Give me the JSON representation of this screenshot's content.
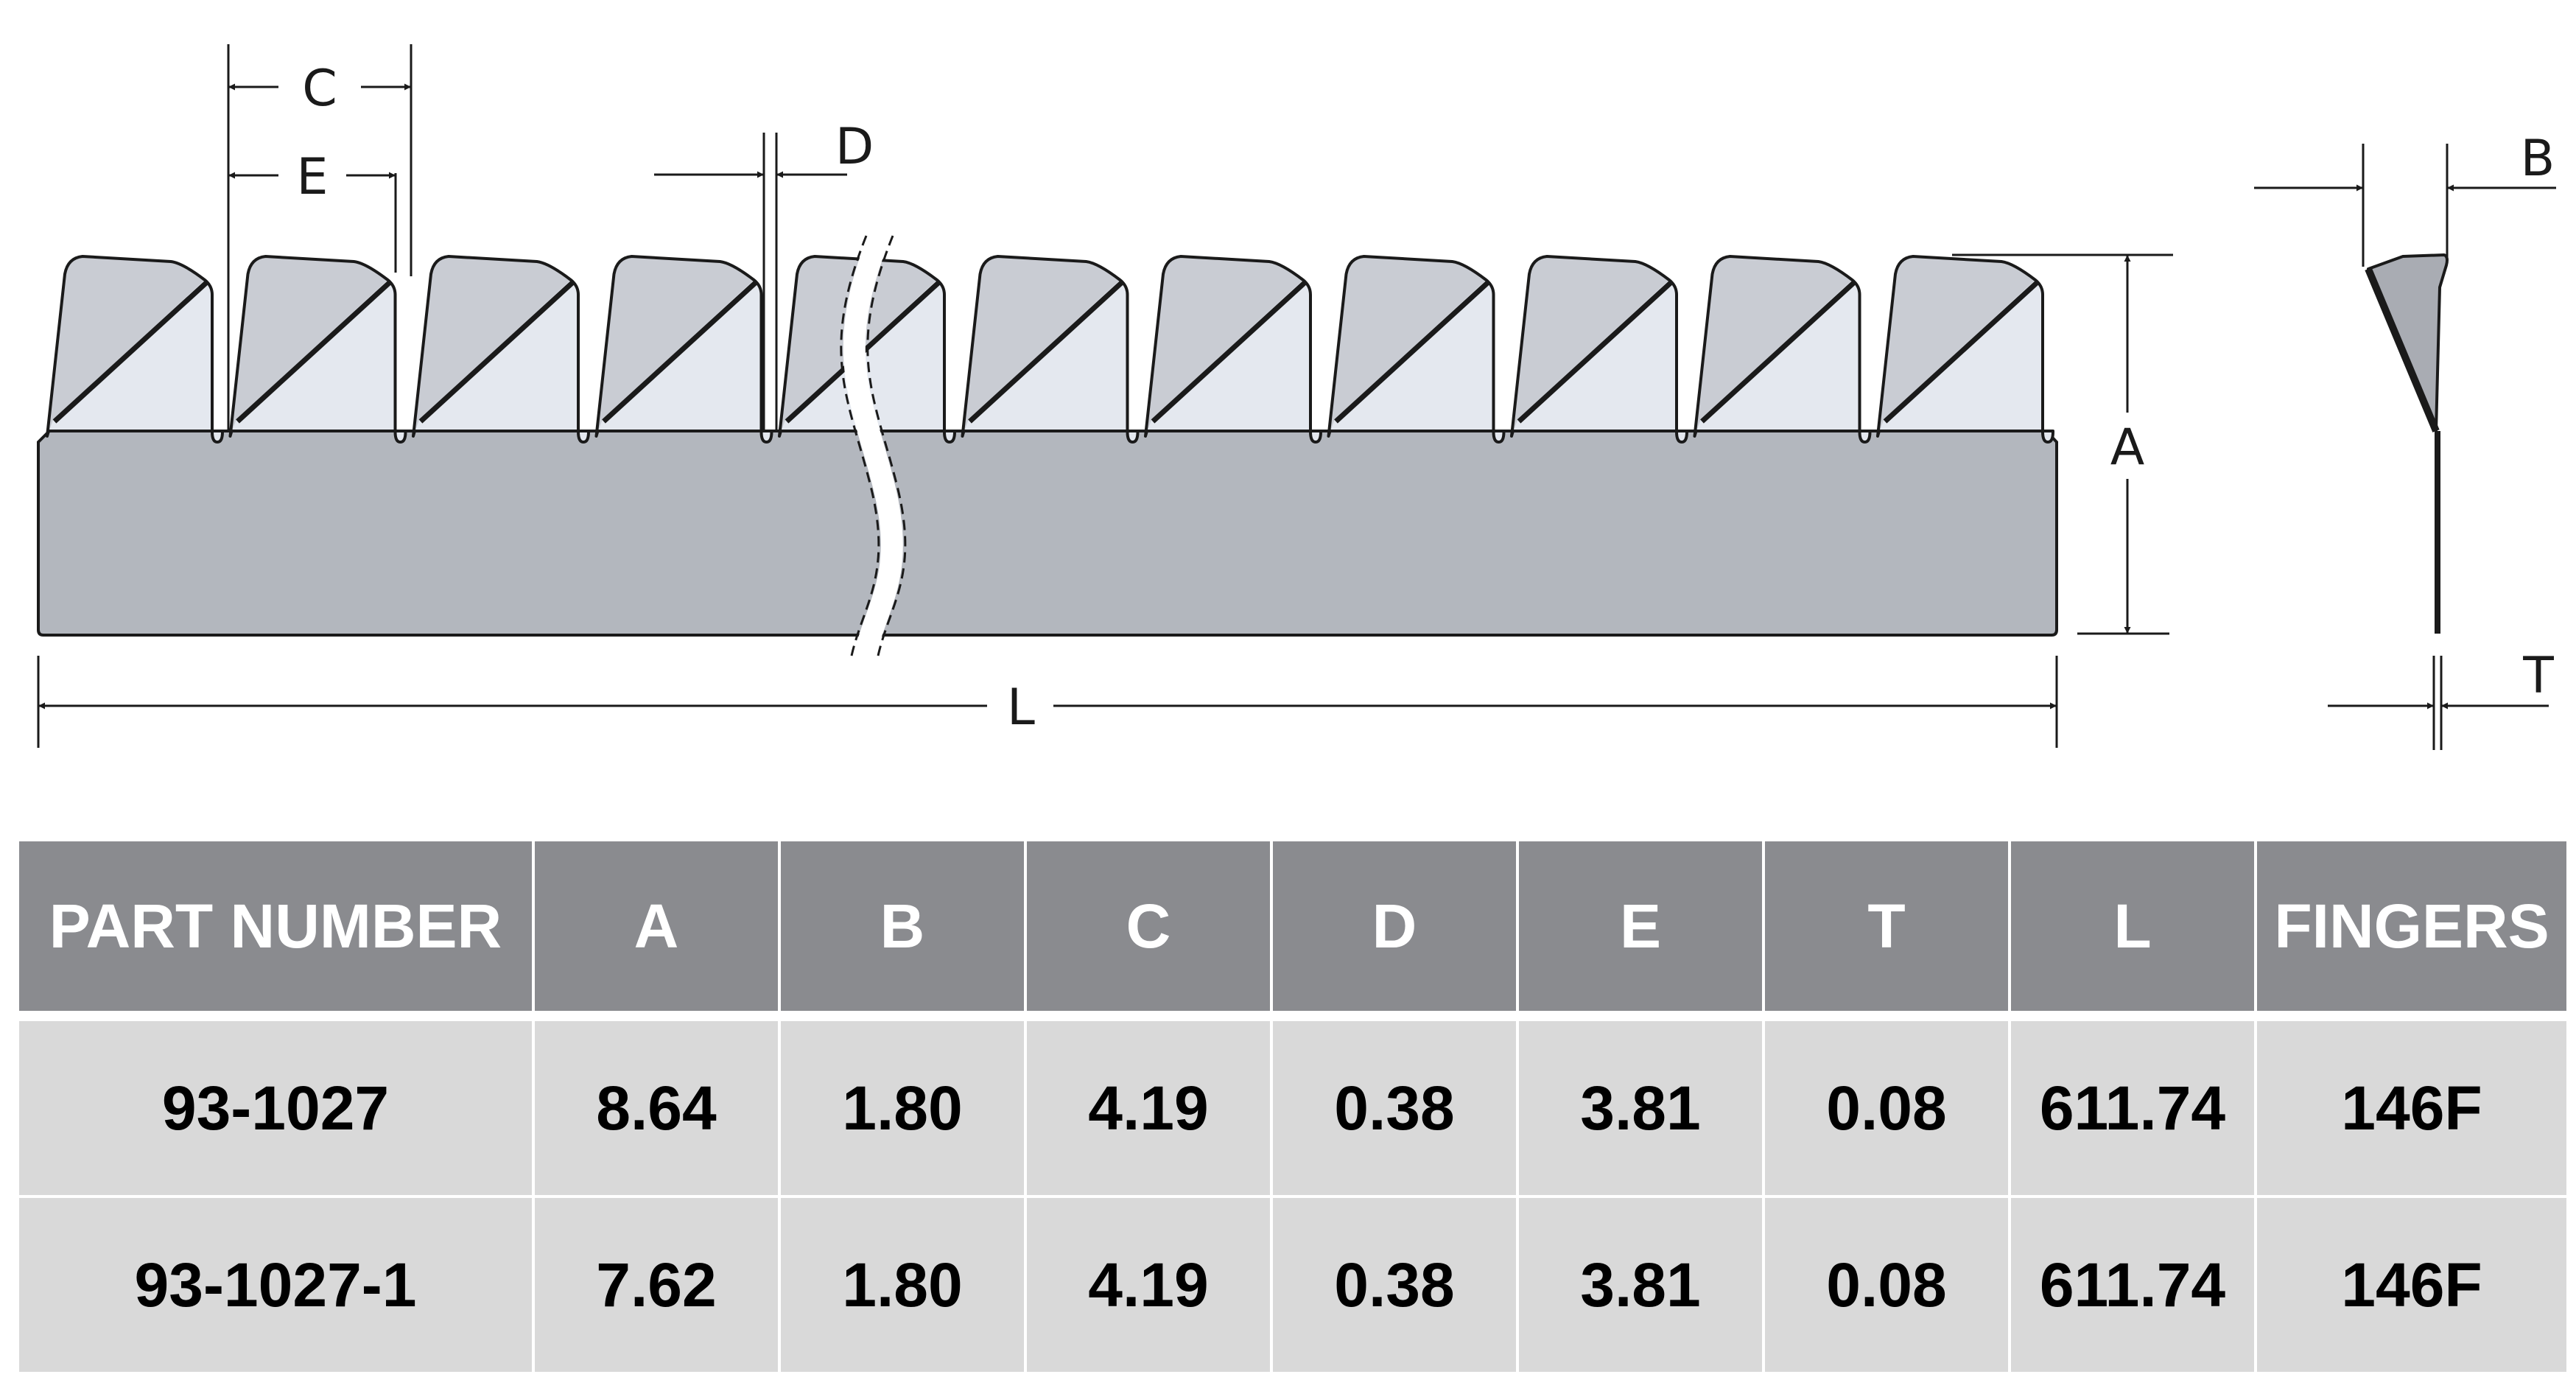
{
  "diagram": {
    "labels": {
      "c": "C",
      "e": "E",
      "d": "D",
      "a": "A",
      "l": "L",
      "b": "B",
      "t": "T"
    },
    "colors": {
      "fingers_light": "#e4e8ef",
      "fingers_dark": "#c9ccd3",
      "base": "#b3b7be",
      "profile_fill": "#a9acb3",
      "outline": "#1a1a1a"
    }
  },
  "table": {
    "headers": [
      "PART NUMBER",
      "A",
      "B",
      "C",
      "D",
      "E",
      "T",
      "L",
      "FINGERS"
    ],
    "rows": [
      [
        "93-1027",
        "8.64",
        "1.80",
        "4.19",
        "0.38",
        "3.81",
        "0.08",
        "611.74",
        "146F"
      ],
      [
        "93-1027-1",
        "7.62",
        "1.80",
        "4.19",
        "0.38",
        "3.81",
        "0.08",
        "611.74",
        "146F"
      ]
    ]
  }
}
